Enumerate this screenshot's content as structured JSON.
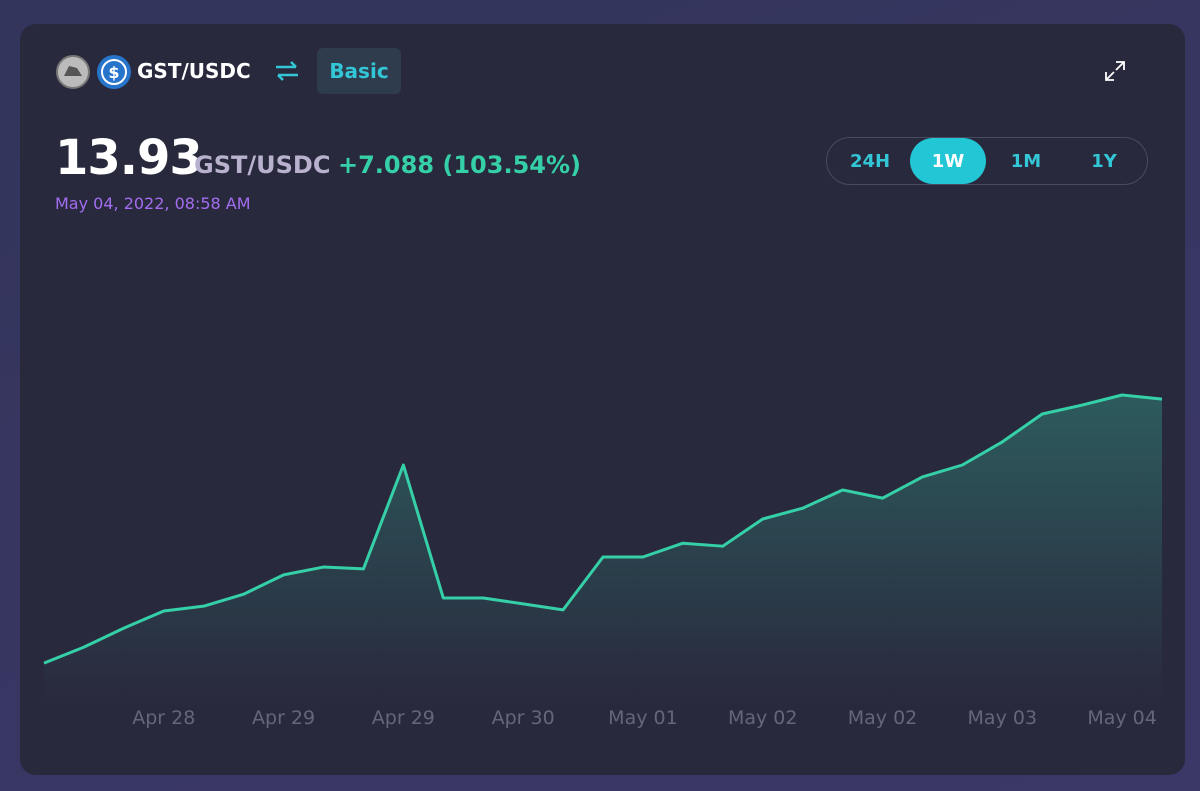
{
  "header": {
    "pair": "GST/USDC",
    "mode": "Basic"
  },
  "price": {
    "value": "13.93",
    "pair": "GST/USDC",
    "change": "+7.088 (103.54%)",
    "timestamp": "May 04, 2022, 08:58 AM"
  },
  "range_buttons": {
    "options": [
      "24H",
      "1W",
      "1M",
      "1Y"
    ],
    "selected": 1
  },
  "chart_data": {
    "type": "area",
    "color": "#35d0a8",
    "categories": [
      null,
      null,
      null,
      "Apr 28",
      null,
      null,
      "Apr 29",
      null,
      null,
      "Apr 29",
      null,
      null,
      "Apr 30",
      null,
      null,
      "May 01",
      null,
      null,
      "May 02",
      null,
      null,
      "May 02",
      null,
      null,
      "May 03",
      null,
      null,
      "May 04",
      null
    ],
    "values": [
      6.84,
      7.27,
      7.78,
      8.24,
      8.37,
      8.69,
      9.21,
      9.42,
      9.37,
      12.16,
      8.59,
      8.59,
      8.43,
      8.27,
      9.69,
      9.69,
      10.06,
      9.98,
      10.71,
      11.0,
      11.49,
      11.27,
      11.84,
      12.16,
      12.78,
      13.53,
      13.77,
      14.04,
      13.93
    ],
    "ylim": [
      5.85,
      18.47
    ]
  }
}
